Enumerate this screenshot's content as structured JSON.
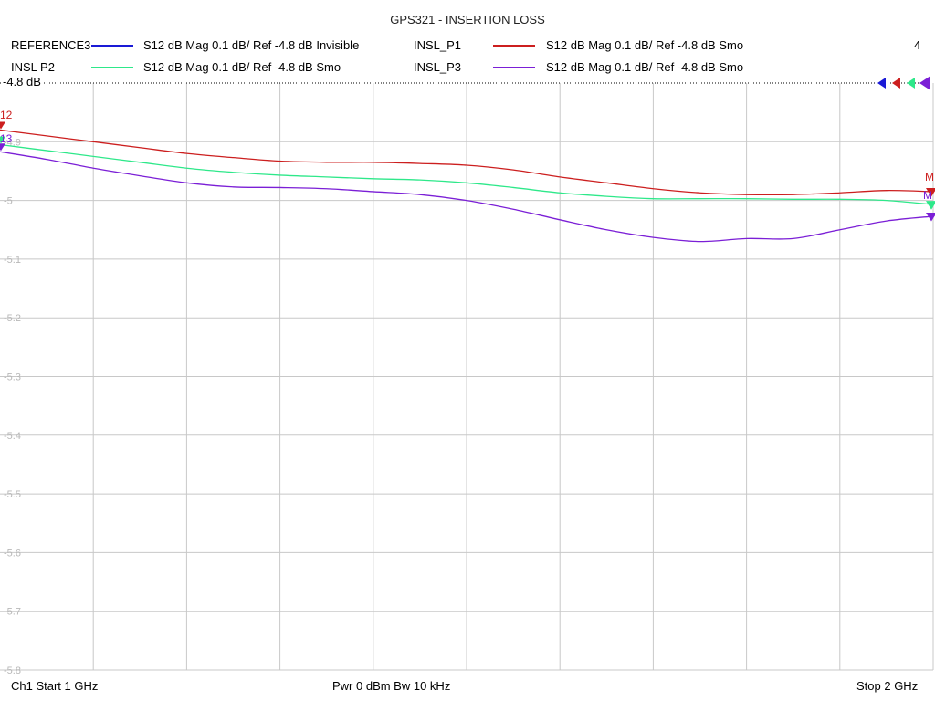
{
  "chart_data": {
    "type": "line",
    "title": "GPS321 - INSERTION LOSS",
    "reference_label": "-4.8 dB",
    "channel_number": "4",
    "x_range_ghz": [
      1.0,
      2.0
    ],
    "ylim": [
      -5.8,
      -4.8
    ],
    "y_ticks": [
      "-4.8",
      "-4.9",
      "-5",
      "-5.1",
      "-5.2",
      "-5.3",
      "-5.4",
      "-5.5",
      "-5.6",
      "-5.7",
      "-5.8"
    ],
    "grid": true,
    "series": [
      {
        "name": "REFERENCE3",
        "description": "S12  dB Mag  0.1 dB/ Ref -4.8 dB  Invisible",
        "color": "#1a1ad6",
        "visible": false,
        "x": [],
        "y": []
      },
      {
        "name": "INSL_P1",
        "description": "S12  dB Mag  0.1 dB/ Ref -4.8 dB  Smo",
        "color": "#cc1f1f",
        "visible": true,
        "x": [
          1.0,
          1.05,
          1.1,
          1.15,
          1.2,
          1.25,
          1.3,
          1.35,
          1.4,
          1.45,
          1.5,
          1.55,
          1.6,
          1.65,
          1.7,
          1.75,
          1.8,
          1.85,
          1.9,
          1.95,
          2.0
        ],
        "y": [
          -4.88,
          -4.89,
          -4.9,
          -4.91,
          -4.92,
          -4.927,
          -4.933,
          -4.935,
          -4.935,
          -4.937,
          -4.94,
          -4.948,
          -4.96,
          -4.97,
          -4.98,
          -4.987,
          -4.99,
          -4.99,
          -4.987,
          -4.983,
          -4.985
        ]
      },
      {
        "name": "INSL  P2",
        "description": "S12  dB Mag  0.1 dB/ Ref -4.8 dB  Smo",
        "color": "#2ee88a",
        "visible": true,
        "x": [
          1.0,
          1.05,
          1.1,
          1.15,
          1.2,
          1.25,
          1.3,
          1.35,
          1.4,
          1.45,
          1.5,
          1.55,
          1.6,
          1.65,
          1.7,
          1.75,
          1.8,
          1.85,
          1.9,
          1.95,
          2.0
        ],
        "y": [
          -4.905,
          -4.915,
          -4.925,
          -4.935,
          -4.945,
          -4.952,
          -4.957,
          -4.96,
          -4.963,
          -4.965,
          -4.97,
          -4.978,
          -4.987,
          -4.993,
          -4.997,
          -4.997,
          -4.997,
          -4.998,
          -4.998,
          -5.0,
          -5.007
        ]
      },
      {
        "name": "INSL_P3",
        "description": "S12  dB Mag  0.1 dB/ Ref -4.8 dB  Smo",
        "color": "#7b1fd6",
        "visible": true,
        "x": [
          1.0,
          1.05,
          1.1,
          1.15,
          1.2,
          1.25,
          1.3,
          1.35,
          1.4,
          1.45,
          1.5,
          1.55,
          1.6,
          1.65,
          1.7,
          1.75,
          1.8,
          1.85,
          1.9,
          1.95,
          2.0
        ],
        "y": [
          -4.917,
          -4.93,
          -4.945,
          -4.958,
          -4.97,
          -4.977,
          -4.978,
          -4.98,
          -4.985,
          -4.99,
          -5.0,
          -5.015,
          -5.033,
          -5.05,
          -5.063,
          -5.07,
          -5.065,
          -5.065,
          -5.05,
          -5.035,
          -5.027
        ]
      }
    ]
  },
  "legend": [
    {
      "name": "REFERENCE3",
      "desc": "S12  dB Mag  0.1 dB/ Ref -4.8 dB  Invisible",
      "color": "#1a1ad6"
    },
    {
      "name": "INSL_P1",
      "desc": "S12  dB Mag  0.1 dB/ Ref -4.8 dB  Smo",
      "color": "#cc1f1f"
    },
    {
      "name": "INSL  P2",
      "desc": "S12  dB Mag  0.1 dB/ Ref -4.8 dB  Smo",
      "color": "#2ee88a"
    },
    {
      "name": "INSL_P3",
      "desc": "S12  dB Mag  0.1 dB/ Ref -4.8 dB  Smo",
      "color": "#7b1fd6"
    }
  ],
  "marker_labels": {
    "left": "12",
    "left_lower": "13",
    "right_upper": "M",
    "right_lower": "M"
  },
  "footer": {
    "start": "Ch1  Start  1 GHz",
    "power": "Pwr  0 dBm  Bw  10 kHz",
    "stop": "Stop  2 GHz"
  }
}
